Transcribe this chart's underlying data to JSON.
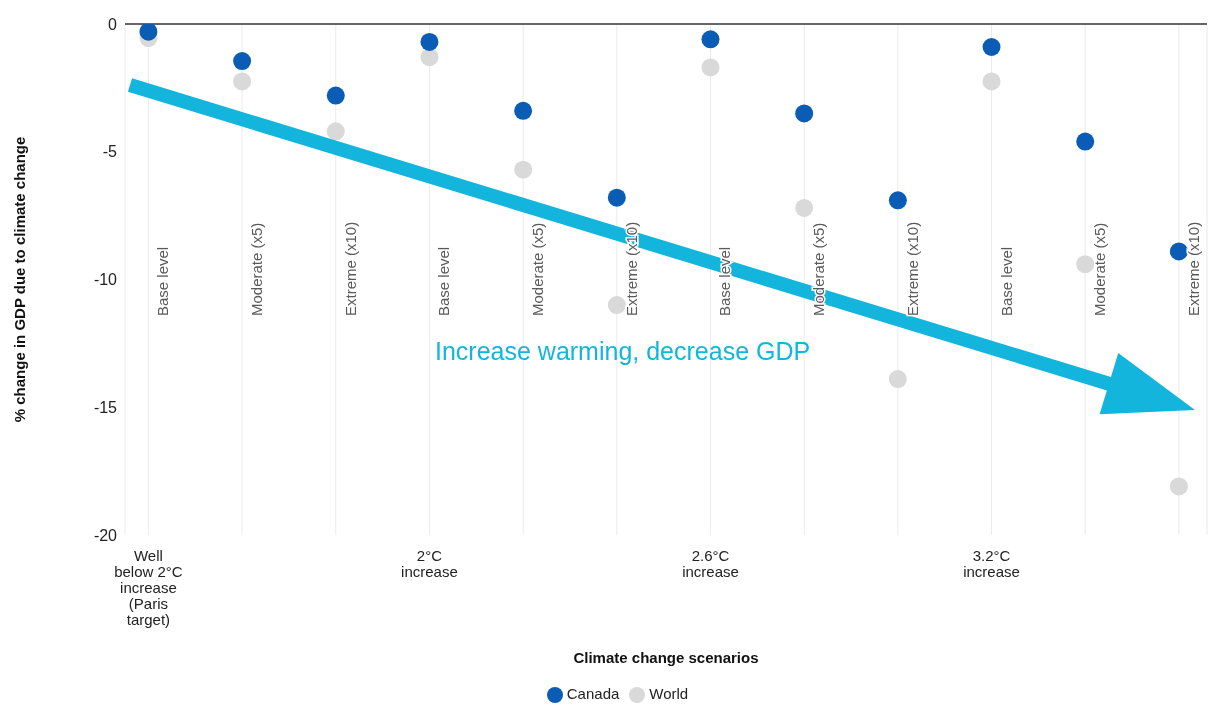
{
  "chart_data": {
    "type": "scatter",
    "xlabel": "Climate change scenarios",
    "ylabel": "% change in GDP due to climate change",
    "categories": [
      "Well\nbelow 2°C\nincrease\n(Paris\ntarget)",
      null,
      null,
      "2°C\nincrease",
      null,
      null,
      "2.6°C\nincrease",
      null,
      null,
      "3.2°C\nincrease",
      null,
      null
    ],
    "series": [
      {
        "name": "Canada",
        "color": "#0a5cb5",
        "values": [
          -0.3,
          -1.45,
          -2.8,
          -0.7,
          -3.4,
          -6.8,
          -0.6,
          -3.5,
          -6.9,
          -0.9,
          -4.6,
          -8.9
        ]
      },
      {
        "name": "World",
        "color": "#d9d9d9",
        "values": [
          -0.55,
          -2.25,
          -4.2,
          -1.3,
          -5.7,
          -11.0,
          -1.7,
          -7.2,
          -13.9,
          -2.25,
          -9.4,
          -18.1
        ]
      }
    ],
    "annotations": [
      "Increase warming, decrease GDP",
      "Base level",
      "Moderate (x5)",
      "Extreme (x10)",
      "Base level",
      "Moderate (x5)",
      "Extreme (x10)",
      "Base level",
      "Moderate (x5)",
      "Extreme (x10)",
      "Base level",
      "Moderate (x5)",
      "Extreme (x10)"
    ],
    "ylim": [
      -20,
      0
    ],
    "yticks": [
      0,
      -5,
      -10,
      -15,
      -20
    ],
    "ref_lines": [
      {
        "axis": "y",
        "value": 0,
        "color": "#333333"
      }
    ],
    "grid": "x",
    "legend": "bottom",
    "marker": "circle"
  }
}
